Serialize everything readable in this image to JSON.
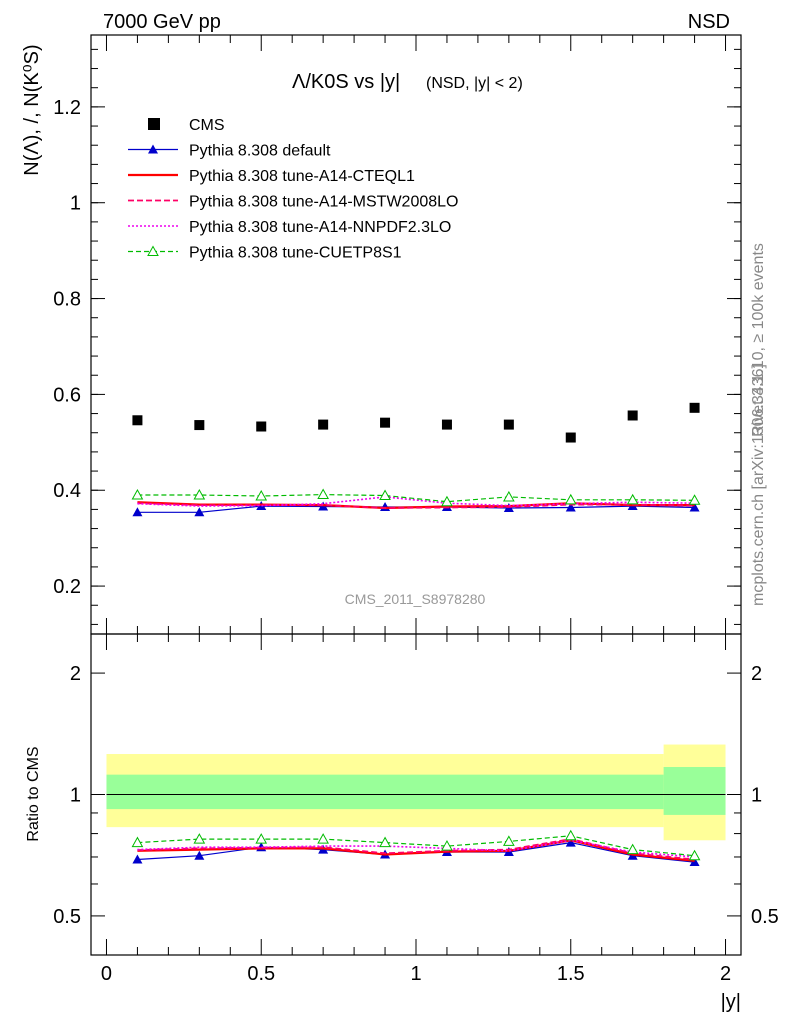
{
  "header": {
    "left": "7000 GeV pp",
    "right": "NSD"
  },
  "side_labels": {
    "rivet": "Rivet 3.1.10, ≥ 100k events",
    "mcplots": "mcplots.cern.ch [arXiv:1306.3436]"
  },
  "watermark": "CMS_2011_S8978280",
  "colors": {
    "cms": "#000000",
    "default": "#0000cc",
    "cteql1": "#ff0000",
    "mstw": "#ff0066",
    "nnpdf": "#ee00ee",
    "cuetp": "#00bb00",
    "band_outer": "#ffff99",
    "band_inner": "#99ff99"
  },
  "chart_data": [
    {
      "type": "scatter",
      "title": "Λ/K0S vs |y|",
      "title_suffix": "(NSD, |y| < 2)",
      "ylabel": "N(Λ), /, N(K⁰S)",
      "xlim": [
        -0.05,
        2.05
      ],
      "ylim": [
        0.1,
        1.35
      ],
      "yticks": [
        0.2,
        0.4,
        0.6,
        0.8,
        1,
        1.2
      ],
      "ytick_labels": [
        "0.2",
        "0.4",
        "0.6",
        "0.8",
        "1",
        "1.2"
      ],
      "x": [
        0.1,
        0.3,
        0.5,
        0.7,
        0.9,
        1.1,
        1.3,
        1.5,
        1.7,
        1.9
      ],
      "legend_position": "top-left",
      "series": [
        {
          "name": "CMS",
          "key": "cms",
          "style": "square",
          "values": [
            0.546,
            0.536,
            0.533,
            0.537,
            0.541,
            0.537,
            0.537,
            0.51,
            0.556,
            0.572
          ]
        },
        {
          "name": "Pythia 8.308 default",
          "key": "default",
          "style": "solid-triangle",
          "values": [
            0.354,
            0.354,
            0.367,
            0.366,
            0.365,
            0.365,
            0.363,
            0.364,
            0.367,
            0.364
          ]
        },
        {
          "name": "Pythia 8.308 tune-A14-CTEQL1",
          "key": "cteql1",
          "style": "solid-thick",
          "values": [
            0.375,
            0.37,
            0.37,
            0.369,
            0.363,
            0.366,
            0.367,
            0.373,
            0.369,
            0.369
          ]
        },
        {
          "name": "Pythia 8.308 tune-A14-MSTW2008LO",
          "key": "mstw",
          "style": "dashed",
          "values": [
            0.373,
            0.369,
            0.369,
            0.369,
            0.363,
            0.364,
            0.365,
            0.37,
            0.37,
            0.368
          ]
        },
        {
          "name": "Pythia 8.308 tune-A14-NNPDF2.3LO",
          "key": "nnpdf",
          "style": "dotted",
          "values": [
            0.372,
            0.367,
            0.368,
            0.372,
            0.386,
            0.373,
            0.368,
            0.372,
            0.375,
            0.373
          ]
        },
        {
          "name": "Pythia 8.308 tune-CUETP8S1",
          "key": "cuetp",
          "style": "dashed-open-triangle",
          "values": [
            0.39,
            0.39,
            0.388,
            0.391,
            0.389,
            0.376,
            0.386,
            0.38,
            0.38,
            0.379
          ]
        }
      ]
    },
    {
      "type": "scatter",
      "title": "",
      "ylabel": "Ratio to CMS",
      "xlabel": "|y|",
      "log_y": true,
      "xlim": [
        -0.05,
        2.05
      ],
      "ylim": [
        0.4,
        2.5
      ],
      "yticks": [
        0.5,
        1,
        2
      ],
      "ytick_labels": [
        "0.5",
        "1",
        "2"
      ],
      "xticks": [
        0,
        0.5,
        1,
        1.5,
        2
      ],
      "xtick_labels": [
        "0",
        "0.5",
        "1",
        "1.5",
        "2"
      ],
      "x": [
        0.1,
        0.3,
        0.5,
        0.7,
        0.9,
        1.1,
        1.3,
        1.5,
        1.7,
        1.9
      ],
      "uncertainty_bands": [
        {
          "x_range": [
            0.0,
            1.8
          ],
          "stat_syst": [
            0.83,
            1.26
          ],
          "stat": [
            0.92,
            1.12
          ]
        },
        {
          "x_range": [
            1.8,
            2.0
          ],
          "stat_syst": [
            0.77,
            1.33
          ],
          "stat": [
            0.89,
            1.17
          ]
        }
      ],
      "series": [
        {
          "name": "Pythia 8.308 default",
          "key": "default",
          "style": "solid-triangle",
          "values": [
            0.69,
            0.705,
            0.74,
            0.73,
            0.71,
            0.72,
            0.72,
            0.76,
            0.705,
            0.68
          ]
        },
        {
          "name": "Pythia 8.308 tune-A14-CTEQL1",
          "key": "cteql1",
          "style": "solid-thick",
          "values": [
            0.725,
            0.73,
            0.735,
            0.735,
            0.71,
            0.722,
            0.725,
            0.77,
            0.71,
            0.685
          ]
        },
        {
          "name": "Pythia 8.308 tune-A14-MSTW2008LO",
          "key": "mstw",
          "style": "dashed",
          "values": [
            0.728,
            0.735,
            0.738,
            0.74,
            0.715,
            0.725,
            0.73,
            0.775,
            0.715,
            0.69
          ]
        },
        {
          "name": "Pythia 8.308 tune-A14-NNPDF2.3LO",
          "key": "nnpdf",
          "style": "dotted",
          "values": [
            0.73,
            0.74,
            0.74,
            0.745,
            0.745,
            0.735,
            0.725,
            0.77,
            0.72,
            0.7
          ]
        },
        {
          "name": "Pythia 8.308 tune-CUETP8S1",
          "key": "cuetp",
          "style": "dashed-open-triangle",
          "values": [
            0.76,
            0.775,
            0.775,
            0.775,
            0.76,
            0.745,
            0.765,
            0.79,
            0.73,
            0.705
          ]
        }
      ]
    }
  ]
}
